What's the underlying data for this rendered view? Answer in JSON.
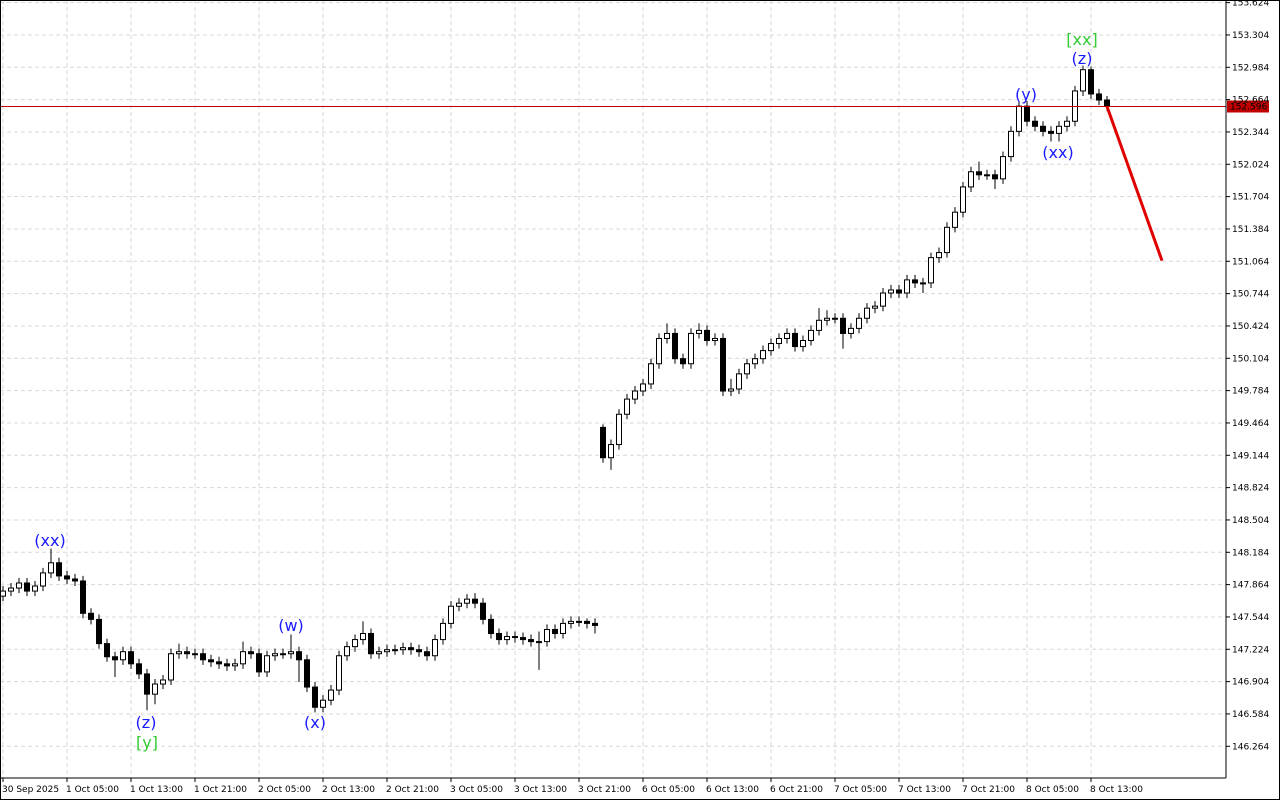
{
  "chart_data": {
    "type": "candlestick",
    "categories": [
      "30 Sep 2025",
      null,
      null,
      null,
      null,
      null,
      null,
      null,
      "1 Oct 05:00",
      null,
      null,
      null,
      null,
      null,
      null,
      null,
      "1 Oct 13:00",
      null,
      null,
      null,
      null,
      null,
      null,
      null,
      "1 Oct 21:00",
      null,
      null,
      null,
      null,
      null,
      null,
      null,
      "2 Oct 05:00",
      null,
      null,
      null,
      null,
      null,
      null,
      null,
      "2 Oct 13:00",
      null,
      null,
      null,
      null,
      null,
      null,
      null,
      "2 Oct 21:00",
      null,
      null,
      null,
      null,
      null,
      null,
      null,
      "3 Oct 05:00",
      null,
      null,
      null,
      null,
      null,
      null,
      null,
      "3 Oct 13:00",
      null,
      null,
      null,
      null,
      null,
      null,
      null,
      "3 Oct 21:00",
      null,
      null,
      null,
      null,
      null,
      null,
      null,
      "6 Oct 05:00",
      null,
      null,
      null,
      null,
      null,
      null,
      null,
      "6 Oct 13:00",
      null,
      null,
      null,
      null,
      null,
      null,
      null,
      "6 Oct 21:00",
      null,
      null,
      null,
      null,
      null,
      null,
      null,
      "7 Oct 05:00",
      null,
      null,
      null,
      null,
      null,
      null,
      null,
      "7 Oct 13:00",
      null,
      null,
      null,
      null,
      null,
      null,
      null,
      "7 Oct 21:00",
      null,
      null,
      null,
      null,
      null,
      null,
      null,
      "8 Oct 05:00",
      null,
      null,
      null,
      null,
      null,
      null,
      null,
      "8 Oct 13:00",
      null,
      null
    ],
    "open": [
      147.75,
      147.8,
      147.83,
      147.88,
      147.8,
      147.85,
      147.98,
      148.08,
      147.95,
      147.92,
      147.9,
      147.58,
      147.52,
      147.28,
      147.15,
      147.12,
      147.2,
      147.08,
      146.98,
      146.78,
      146.88,
      146.92,
      147.18,
      147.2,
      147.18,
      147.18,
      147.12,
      147.1,
      147.08,
      147.06,
      147.08,
      147.2,
      147.18,
      147.0,
      147.16,
      147.18,
      147.18,
      147.2,
      147.12,
      146.85,
      146.65,
      146.72,
      146.82,
      147.16,
      147.25,
      147.32,
      147.38,
      147.18,
      147.2,
      147.22,
      147.22,
      147.24,
      147.22,
      147.2,
      147.16,
      147.32,
      147.48,
      147.65,
      147.68,
      147.72,
      147.68,
      147.52,
      147.38,
      147.32,
      147.35,
      147.34,
      147.32,
      147.3,
      147.3,
      147.42,
      147.38,
      147.48,
      147.5,
      147.5,
      147.48,
      149.42,
      149.12,
      149.25,
      149.55,
      149.7,
      149.78,
      149.85,
      150.05,
      150.3,
      150.35,
      150.1,
      150.05,
      150.35,
      150.38,
      150.28,
      150.3,
      149.78,
      149.8,
      149.95,
      150.05,
      150.1,
      150.18,
      150.25,
      150.3,
      150.35,
      150.22,
      150.28,
      150.38,
      150.48,
      150.5,
      150.5,
      150.35,
      150.4,
      150.5,
      150.6,
      150.62,
      150.75,
      150.78,
      150.75,
      150.88,
      150.85,
      150.85,
      151.1,
      151.15,
      151.4,
      151.55,
      151.8,
      151.95,
      151.92,
      151.92,
      151.88,
      152.1,
      152.35,
      152.6,
      152.45,
      152.4,
      152.35,
      152.33,
      152.4,
      152.45,
      152.75,
      152.96,
      152.72,
      152.66
    ],
    "high": [
      147.85,
      147.88,
      147.93,
      147.93,
      147.9,
      148.03,
      148.22,
      148.13,
      148.0,
      147.97,
      147.95,
      147.63,
      147.57,
      147.33,
      147.2,
      147.25,
      147.25,
      147.13,
      147.03,
      146.93,
      146.97,
      147.23,
      147.28,
      147.25,
      147.23,
      147.23,
      147.17,
      147.15,
      147.13,
      147.13,
      147.3,
      147.25,
      147.23,
      147.21,
      147.23,
      147.23,
      147.37,
      147.25,
      147.17,
      146.9,
      146.77,
      146.87,
      147.21,
      147.3,
      147.37,
      147.5,
      147.43,
      147.25,
      147.27,
      147.27,
      147.29,
      147.29,
      147.27,
      147.25,
      147.37,
      147.53,
      147.7,
      147.73,
      147.77,
      147.78,
      147.73,
      147.57,
      147.43,
      147.4,
      147.4,
      147.39,
      147.37,
      147.4,
      147.47,
      147.47,
      147.53,
      147.55,
      147.55,
      147.53,
      147.53,
      149.45,
      149.3,
      149.6,
      149.75,
      149.83,
      149.9,
      150.1,
      150.35,
      150.45,
      150.4,
      150.15,
      150.4,
      150.45,
      150.43,
      150.35,
      150.35,
      149.9,
      150.0,
      150.1,
      150.15,
      150.23,
      150.3,
      150.35,
      150.4,
      150.4,
      150.33,
      150.43,
      150.6,
      150.58,
      150.55,
      150.55,
      150.45,
      150.55,
      150.65,
      150.67,
      150.8,
      150.83,
      150.83,
      150.93,
      150.93,
      150.9,
      151.15,
      151.2,
      151.45,
      151.6,
      151.85,
      152.0,
      152.05,
      151.97,
      151.97,
      152.15,
      152.4,
      152.65,
      152.65,
      152.5,
      152.45,
      152.4,
      152.45,
      152.5,
      152.8,
      153.0,
      152.99,
      152.77,
      152.7
    ],
    "low": [
      147.7,
      147.75,
      147.78,
      147.75,
      147.75,
      147.8,
      147.93,
      147.9,
      147.87,
      147.85,
      147.53,
      147.47,
      147.23,
      147.1,
      146.95,
      147.07,
      147.03,
      146.93,
      146.62,
      146.68,
      146.83,
      146.87,
      147.13,
      147.13,
      147.13,
      147.07,
      147.05,
      147.03,
      147.01,
      147.01,
      147.03,
      147.13,
      146.95,
      146.95,
      147.11,
      147.13,
      147.13,
      146.9,
      146.8,
      146.6,
      146.6,
      146.67,
      146.77,
      147.11,
      147.2,
      147.27,
      147.13,
      147.13,
      147.15,
      147.17,
      147.17,
      147.17,
      147.15,
      147.11,
      147.11,
      147.27,
      147.43,
      147.6,
      147.63,
      147.63,
      147.47,
      147.33,
      147.27,
      147.27,
      147.29,
      147.27,
      147.25,
      147.02,
      147.25,
      147.33,
      147.33,
      147.43,
      147.45,
      147.43,
      147.38,
      149.07,
      149.0,
      149.2,
      149.5,
      149.65,
      149.73,
      149.8,
      150.0,
      150.25,
      150.05,
      150.0,
      150.0,
      150.3,
      150.23,
      150.23,
      149.73,
      149.73,
      149.75,
      149.9,
      150.0,
      150.05,
      150.13,
      150.2,
      150.25,
      150.17,
      150.17,
      150.23,
      150.33,
      150.43,
      150.45,
      150.2,
      150.3,
      150.35,
      150.45,
      150.55,
      150.57,
      150.7,
      150.7,
      150.7,
      150.8,
      150.75,
      150.8,
      151.05,
      151.1,
      151.35,
      151.5,
      151.75,
      151.87,
      151.87,
      151.78,
      151.83,
      152.05,
      152.3,
      152.4,
      152.35,
      152.3,
      152.25,
      152.25,
      152.35,
      152.4,
      152.7,
      152.67,
      152.61,
      152.55
    ],
    "close": [
      147.8,
      147.83,
      147.88,
      147.8,
      147.85,
      147.98,
      148.08,
      147.95,
      147.92,
      147.9,
      147.58,
      147.52,
      147.28,
      147.15,
      147.12,
      147.2,
      147.08,
      146.98,
      146.78,
      146.88,
      146.92,
      147.18,
      147.2,
      147.18,
      147.18,
      147.12,
      147.1,
      147.08,
      147.06,
      147.08,
      147.2,
      147.18,
      147.0,
      147.16,
      147.18,
      147.18,
      147.2,
      147.12,
      146.85,
      146.65,
      146.72,
      146.82,
      147.16,
      147.25,
      147.32,
      147.38,
      147.18,
      147.2,
      147.22,
      147.22,
      147.24,
      147.22,
      147.2,
      147.16,
      147.32,
      147.48,
      147.65,
      147.68,
      147.72,
      147.68,
      147.52,
      147.38,
      147.32,
      147.35,
      147.34,
      147.32,
      147.3,
      147.3,
      147.42,
      147.38,
      147.48,
      147.5,
      147.5,
      147.48,
      147.46,
      149.12,
      149.25,
      149.55,
      149.7,
      149.78,
      149.85,
      150.05,
      150.3,
      150.35,
      150.1,
      150.05,
      150.35,
      150.38,
      150.28,
      150.3,
      149.78,
      149.8,
      149.95,
      150.05,
      150.1,
      150.18,
      150.25,
      150.3,
      150.35,
      150.22,
      150.28,
      150.38,
      150.48,
      150.5,
      150.5,
      150.35,
      150.4,
      150.5,
      150.6,
      150.62,
      150.75,
      150.78,
      150.75,
      150.88,
      150.85,
      150.85,
      151.1,
      151.15,
      151.4,
      151.55,
      151.8,
      151.95,
      151.92,
      151.92,
      151.88,
      152.1,
      152.35,
      152.6,
      152.45,
      152.4,
      152.35,
      152.33,
      152.4,
      152.45,
      152.75,
      152.96,
      152.72,
      152.66,
      152.6
    ],
    "up_color": "#ffffff",
    "down_color": "#000000",
    "wick_color": "#000000",
    "ylim": [
      145.95,
      153.65
    ],
    "yticks": [
      146.264,
      146.584,
      146.904,
      147.224,
      147.544,
      147.864,
      148.184,
      148.504,
      148.824,
      149.144,
      149.464,
      149.784,
      150.104,
      150.424,
      150.744,
      151.064,
      151.384,
      151.704,
      152.024,
      152.344,
      152.664,
      152.984,
      153.304,
      153.624
    ],
    "grid": true,
    "current_price": {
      "value": 152.596,
      "color": "#c00000"
    },
    "forecast": {
      "color": "#e00000",
      "values": [
        152.596,
        151.07
      ]
    },
    "annotations": [
      {
        "text": "(xx)",
        "color": "#1a1aff"
      },
      {
        "text": "(z)",
        "color": "#1a1aff"
      },
      {
        "text": "[y]",
        "color": "#33cc33"
      },
      {
        "text": "(w)",
        "color": "#1a1aff"
      },
      {
        "text": "(x)",
        "color": "#1a1aff"
      },
      {
        "text": "(y)",
        "color": "#1a1aff"
      },
      {
        "text": "(xx)",
        "color": "#1a1aff"
      },
      {
        "text": "(z)",
        "color": "#1a1aff"
      },
      {
        "text": "[xx]",
        "color": "#33cc33"
      }
    ]
  }
}
